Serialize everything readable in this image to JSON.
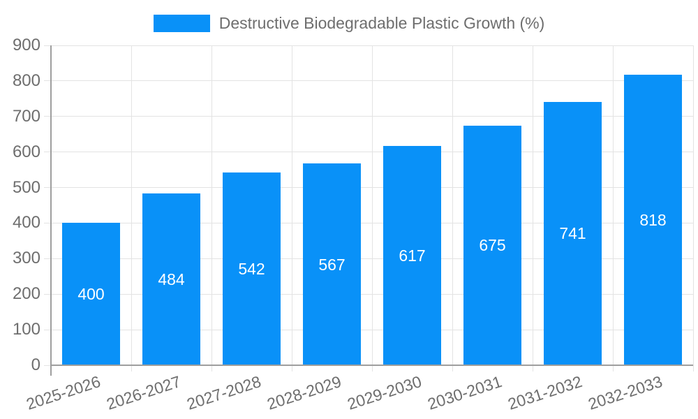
{
  "legend": {
    "label": "Destructive Biodegradable Plastic Growth (%)"
  },
  "colors": {
    "bar": "#0991f8",
    "gridline": "#e3e3e3",
    "axis_line": "#9e9e9e",
    "axis_text": "#6e6e6e",
    "bar_label_text": "#ffffff",
    "background": "#ffffff"
  },
  "chart_data": {
    "type": "bar",
    "title": "Destructive Biodegradable Plastic Growth (%)",
    "categories": [
      "2025-2026",
      "2026-2027",
      "2027-2028",
      "2028-2029",
      "2029-2030",
      "2030-2031",
      "2031-2032",
      "2032-2033"
    ],
    "values": [
      400,
      484,
      542,
      567,
      617,
      675,
      741,
      818
    ],
    "data_labels_shown": true,
    "xlabel": "",
    "ylabel": "",
    "ylim": [
      0,
      900
    ],
    "yticks": [
      0,
      100,
      200,
      300,
      400,
      500,
      600,
      700,
      800,
      900
    ],
    "grid": true,
    "legend_position": "top",
    "bar_color": "#0991f8",
    "x_tick_rotation_deg": -18
  }
}
